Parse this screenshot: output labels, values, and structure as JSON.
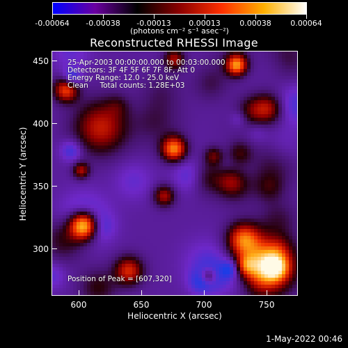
{
  "colorbar": {
    "labels": [
      "-0.00064",
      "-0.00038",
      "-0.00013",
      "0.00013",
      "0.00038",
      "0.00064"
    ],
    "units": "(photons cm⁻² s⁻¹ asec⁻²)",
    "gradient": [
      "#0000ff",
      "#6a00a0",
      "#000000",
      "#8b0000",
      "#ff3000",
      "#ffb000",
      "#ffffff"
    ]
  },
  "title": "Reconstructed RHESSI Image",
  "info": {
    "line1": "25-Apr-2003 00:00:00.000 to 00:03:00.000",
    "line2": "Detectors: 3F 4F 5F 6F 7F 8F, Att 0",
    "line3": "Energy Range: 12.0 - 25.0 keV",
    "line4": "Clean     Total counts: 1.28E+03",
    "peak": "Position of Peak = [607,320]"
  },
  "axes": {
    "xlabel": "Heliocentric X (arcsec)",
    "ylabel": "Heliocentric Y (arcsec)",
    "xticks": [
      "600",
      "650",
      "700",
      "750"
    ],
    "yticks": [
      "300",
      "350",
      "400",
      "450"
    ],
    "xlim": [
      580,
      772
    ],
    "ylim": [
      262,
      458
    ]
  },
  "datestamp": "1-May-2022 00:46"
}
